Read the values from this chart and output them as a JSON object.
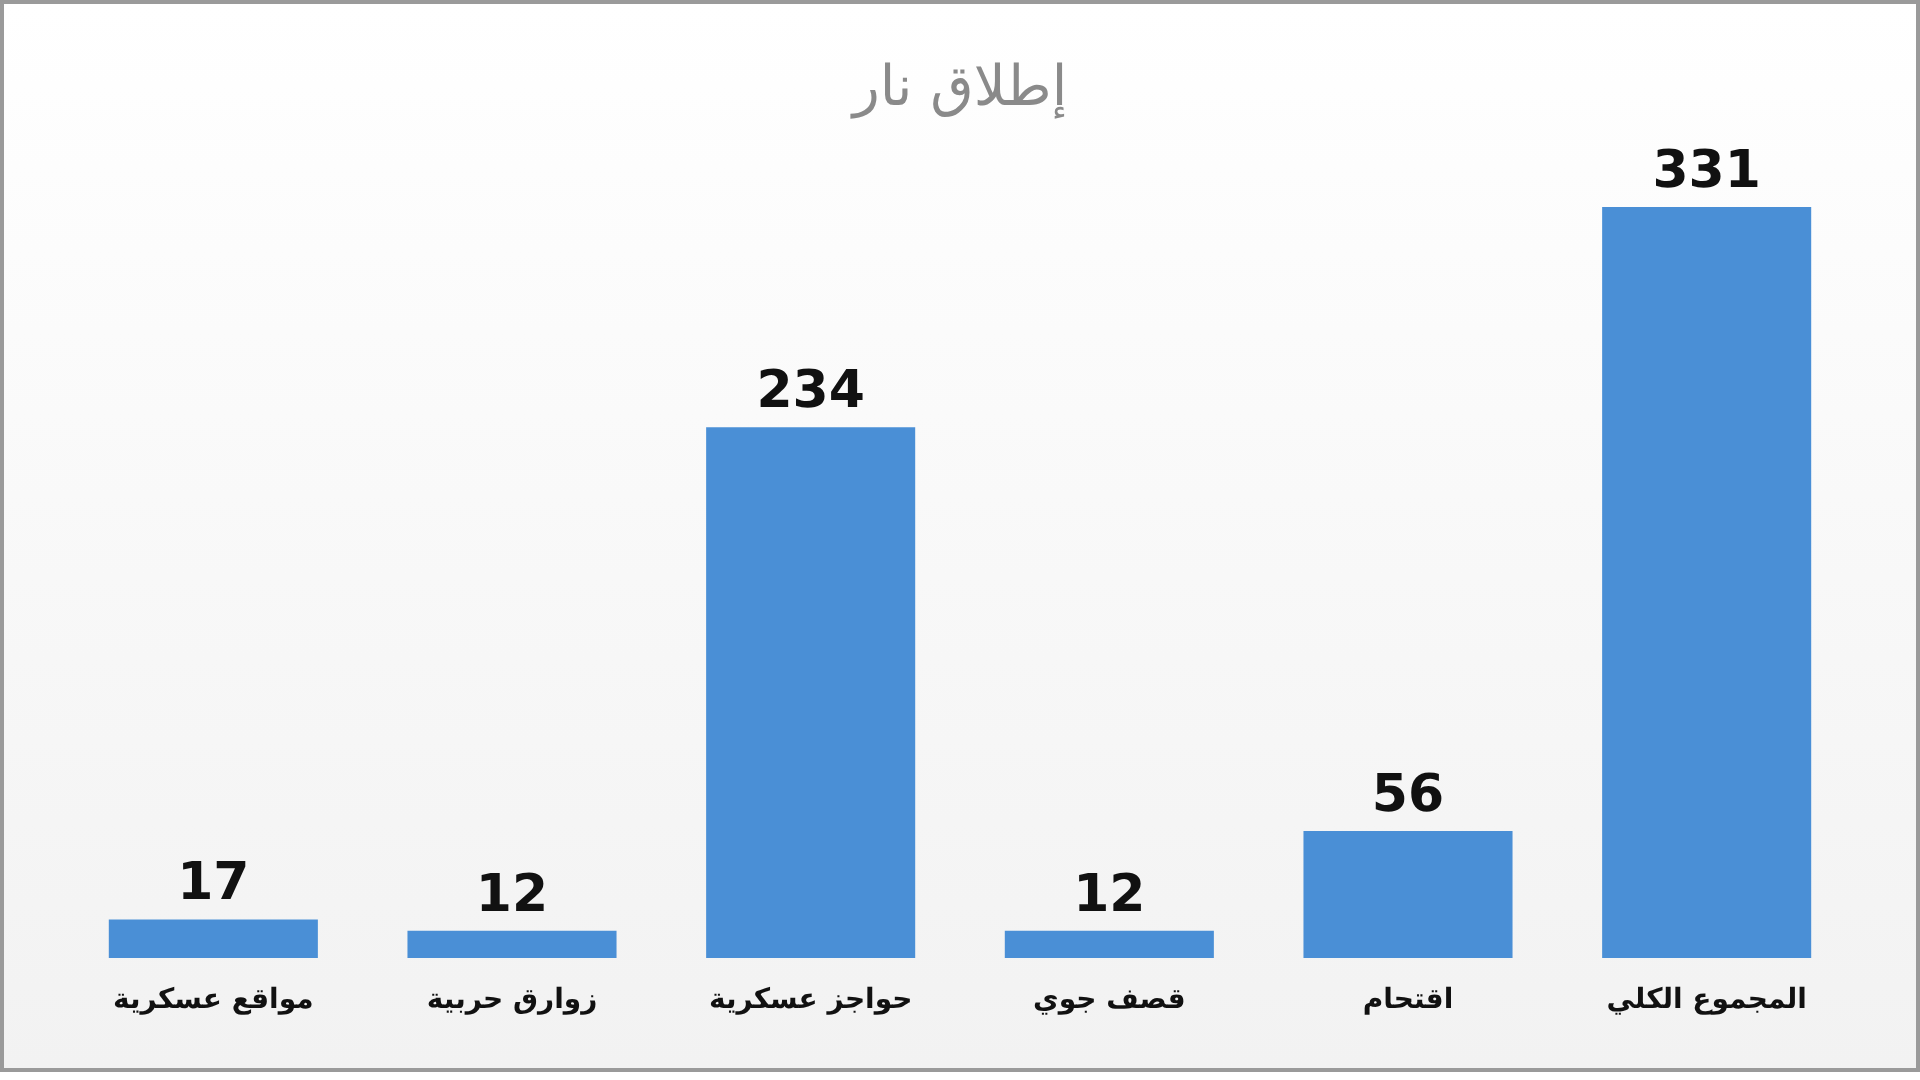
{
  "chart_data": {
    "type": "bar",
    "title": "إطلاق نار",
    "categories": [
      "مواقع عسكرية",
      "زوارق حربية",
      "حواجز عسكرية",
      "قصف جوي",
      "اقتحام",
      "المجموع الكلي"
    ],
    "values": [
      17,
      12,
      234,
      12,
      56,
      331
    ],
    "color": "#4a8fd6",
    "data_labels": true
  }
}
